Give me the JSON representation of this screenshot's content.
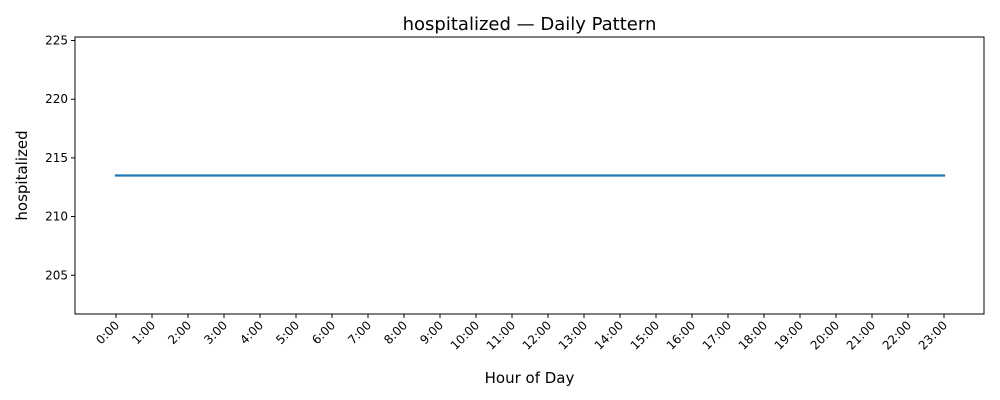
{
  "chart_data": {
    "type": "line",
    "title": "hospitalized — Daily Pattern",
    "xlabel": "Hour of Day",
    "ylabel": "hospitalized",
    "categories": [
      "0:00",
      "1:00",
      "2:00",
      "3:00",
      "4:00",
      "5:00",
      "6:00",
      "7:00",
      "8:00",
      "9:00",
      "10:00",
      "11:00",
      "12:00",
      "13:00",
      "14:00",
      "15:00",
      "16:00",
      "17:00",
      "18:00",
      "19:00",
      "20:00",
      "21:00",
      "22:00",
      "23:00"
    ],
    "series": [
      {
        "values": [
          213.5,
          213.5,
          213.5,
          213.5,
          213.5,
          213.5,
          213.5,
          213.5,
          213.5,
          213.5,
          213.5,
          213.5,
          213.5,
          213.5,
          213.5,
          213.5,
          213.5,
          213.5,
          213.5,
          213.5,
          213.5,
          213.5,
          213.5,
          213.5
        ],
        "color": "#1f77b4"
      }
    ],
    "ylim": [
      201.7,
      225.3
    ],
    "yticks": [
      205,
      210,
      215,
      220,
      225
    ],
    "grid": false,
    "legend": "none"
  }
}
